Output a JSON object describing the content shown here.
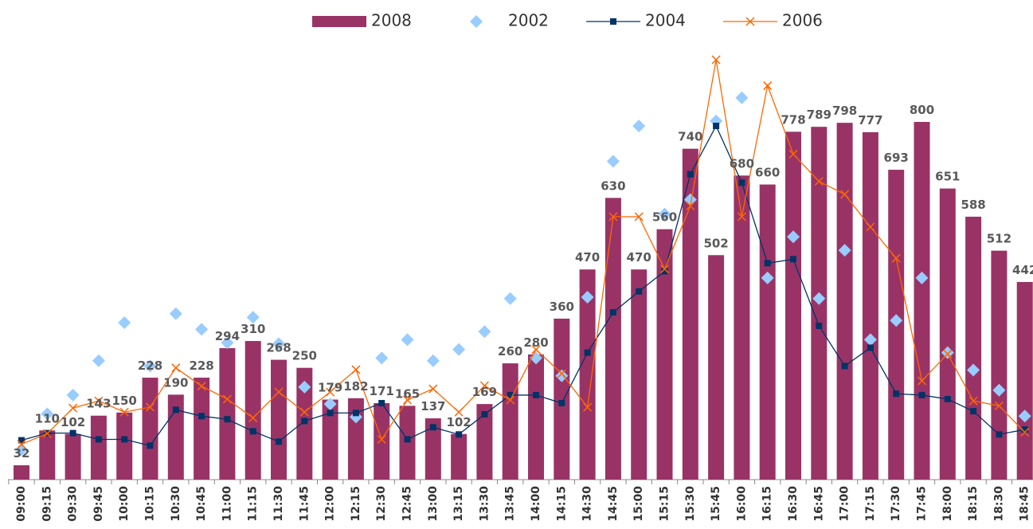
{
  "chart_data": {
    "type": "bar",
    "categories": [
      "09:00",
      "09:15",
      "09:30",
      "09:45",
      "10:00",
      "10:15",
      "10:30",
      "10:45",
      "11:00",
      "11:15",
      "11:30",
      "11:45",
      "12:00",
      "12:15",
      "12:30",
      "12:45",
      "13:00",
      "13:15",
      "13:30",
      "13:45",
      "14:00",
      "14:15",
      "14:30",
      "14:45",
      "15:00",
      "15:15",
      "15:30",
      "15:45",
      "16:00",
      "16:15",
      "16:30",
      "16:45",
      "17:00",
      "17:15",
      "17:30",
      "17:45",
      "18:00",
      "18:15",
      "18:30",
      "18:45"
    ],
    "legend": "top",
    "series": [
      {
        "name": "2008",
        "type": "bar",
        "color": "#993366",
        "values": [
          32,
          110,
          102,
          143,
          150,
          228,
          190,
          228,
          294,
          310,
          268,
          250,
          179,
          182,
          171,
          165,
          137,
          102,
          169,
          260,
          280,
          360,
          470,
          630,
          470,
          560,
          740,
          502,
          680,
          660,
          778,
          789,
          798,
          777,
          693,
          800,
          651,
          588,
          512,
          442
        ]
      },
      {
        "name": "2002",
        "type": "scatter",
        "marker": "diamond",
        "color": "#99ccff",
        "values": [
          67,
          147,
          189,
          266,
          351,
          254,
          371,
          336,
          306,
          363,
          304,
          207,
          169,
          140,
          272,
          313,
          266,
          291,
          331,
          405,
          272,
          232,
          408,
          712,
          791,
          594,
          626,
          802,
          854,
          451,
          543,
          405,
          513,
          313,
          356,
          451,
          284,
          245,
          200,
          142
        ]
      },
      {
        "name": "2004",
        "type": "line",
        "marker": "square",
        "color": "#003366",
        "values": [
          88,
          104,
          104,
          90,
          90,
          76,
          156,
          142,
          135,
          108,
          85,
          131,
          149,
          149,
          171,
          90,
          117,
          101,
          146,
          189,
          189,
          171,
          284,
          374,
          421,
          466,
          683,
          791,
          664,
          484,
          493,
          344,
          254,
          295,
          192,
          189,
          180,
          153,
          101,
          112
        ]
      },
      {
        "name": "2006",
        "type": "line",
        "marker": "x",
        "color": "#ff6600",
        "values": [
          79,
          103,
          160,
          176,
          151,
          162,
          250,
          209,
          180,
          138,
          196,
          151,
          196,
          246,
          90,
          178,
          203,
          151,
          210,
          178,
          291,
          237,
          162,
          588,
          588,
          471,
          612,
          939,
          588,
          881,
          728,
          667,
          638,
          565,
          495,
          221,
          281,
          176,
          165,
          106
        ]
      }
    ]
  }
}
